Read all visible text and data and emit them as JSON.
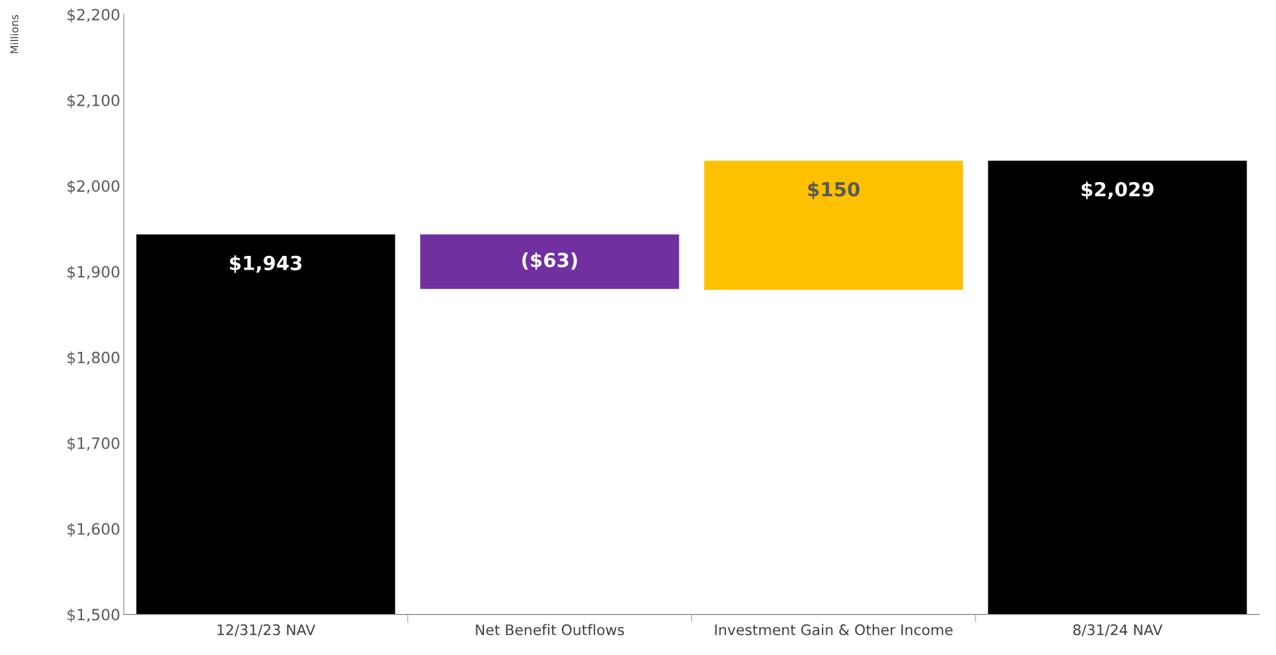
{
  "chart_data": {
    "type": "bar",
    "ylabel": "Millions",
    "categories": [
      "12/31/23 NAV",
      "Net Benefit Outflows",
      "Investment Gain & Other Income",
      "8/31/24 NAV"
    ],
    "values": [
      1943,
      -63,
      150,
      2029
    ],
    "base": [
      null,
      1943,
      1879,
      null
    ],
    "colors": [
      "#000000",
      "#7030a0",
      "#ffc000",
      "#000000"
    ],
    "value_labels": [
      "$1,943",
      "($63)",
      "$150",
      "$2,029"
    ],
    "ylim": [
      1500,
      2200
    ],
    "yticks": [
      {
        "value": 1500,
        "label": "$1,500"
      },
      {
        "value": 1600,
        "label": "$1,600"
      },
      {
        "value": 1700,
        "label": "$1,700"
      },
      {
        "value": 1800,
        "label": "$1,800"
      },
      {
        "value": 1900,
        "label": "$1,900"
      },
      {
        "value": 2000,
        "label": "$2,000"
      },
      {
        "value": 2100,
        "label": "$2,100"
      },
      {
        "value": 2200,
        "label": "$2,200"
      }
    ],
    "grid": false,
    "legend": false
  }
}
